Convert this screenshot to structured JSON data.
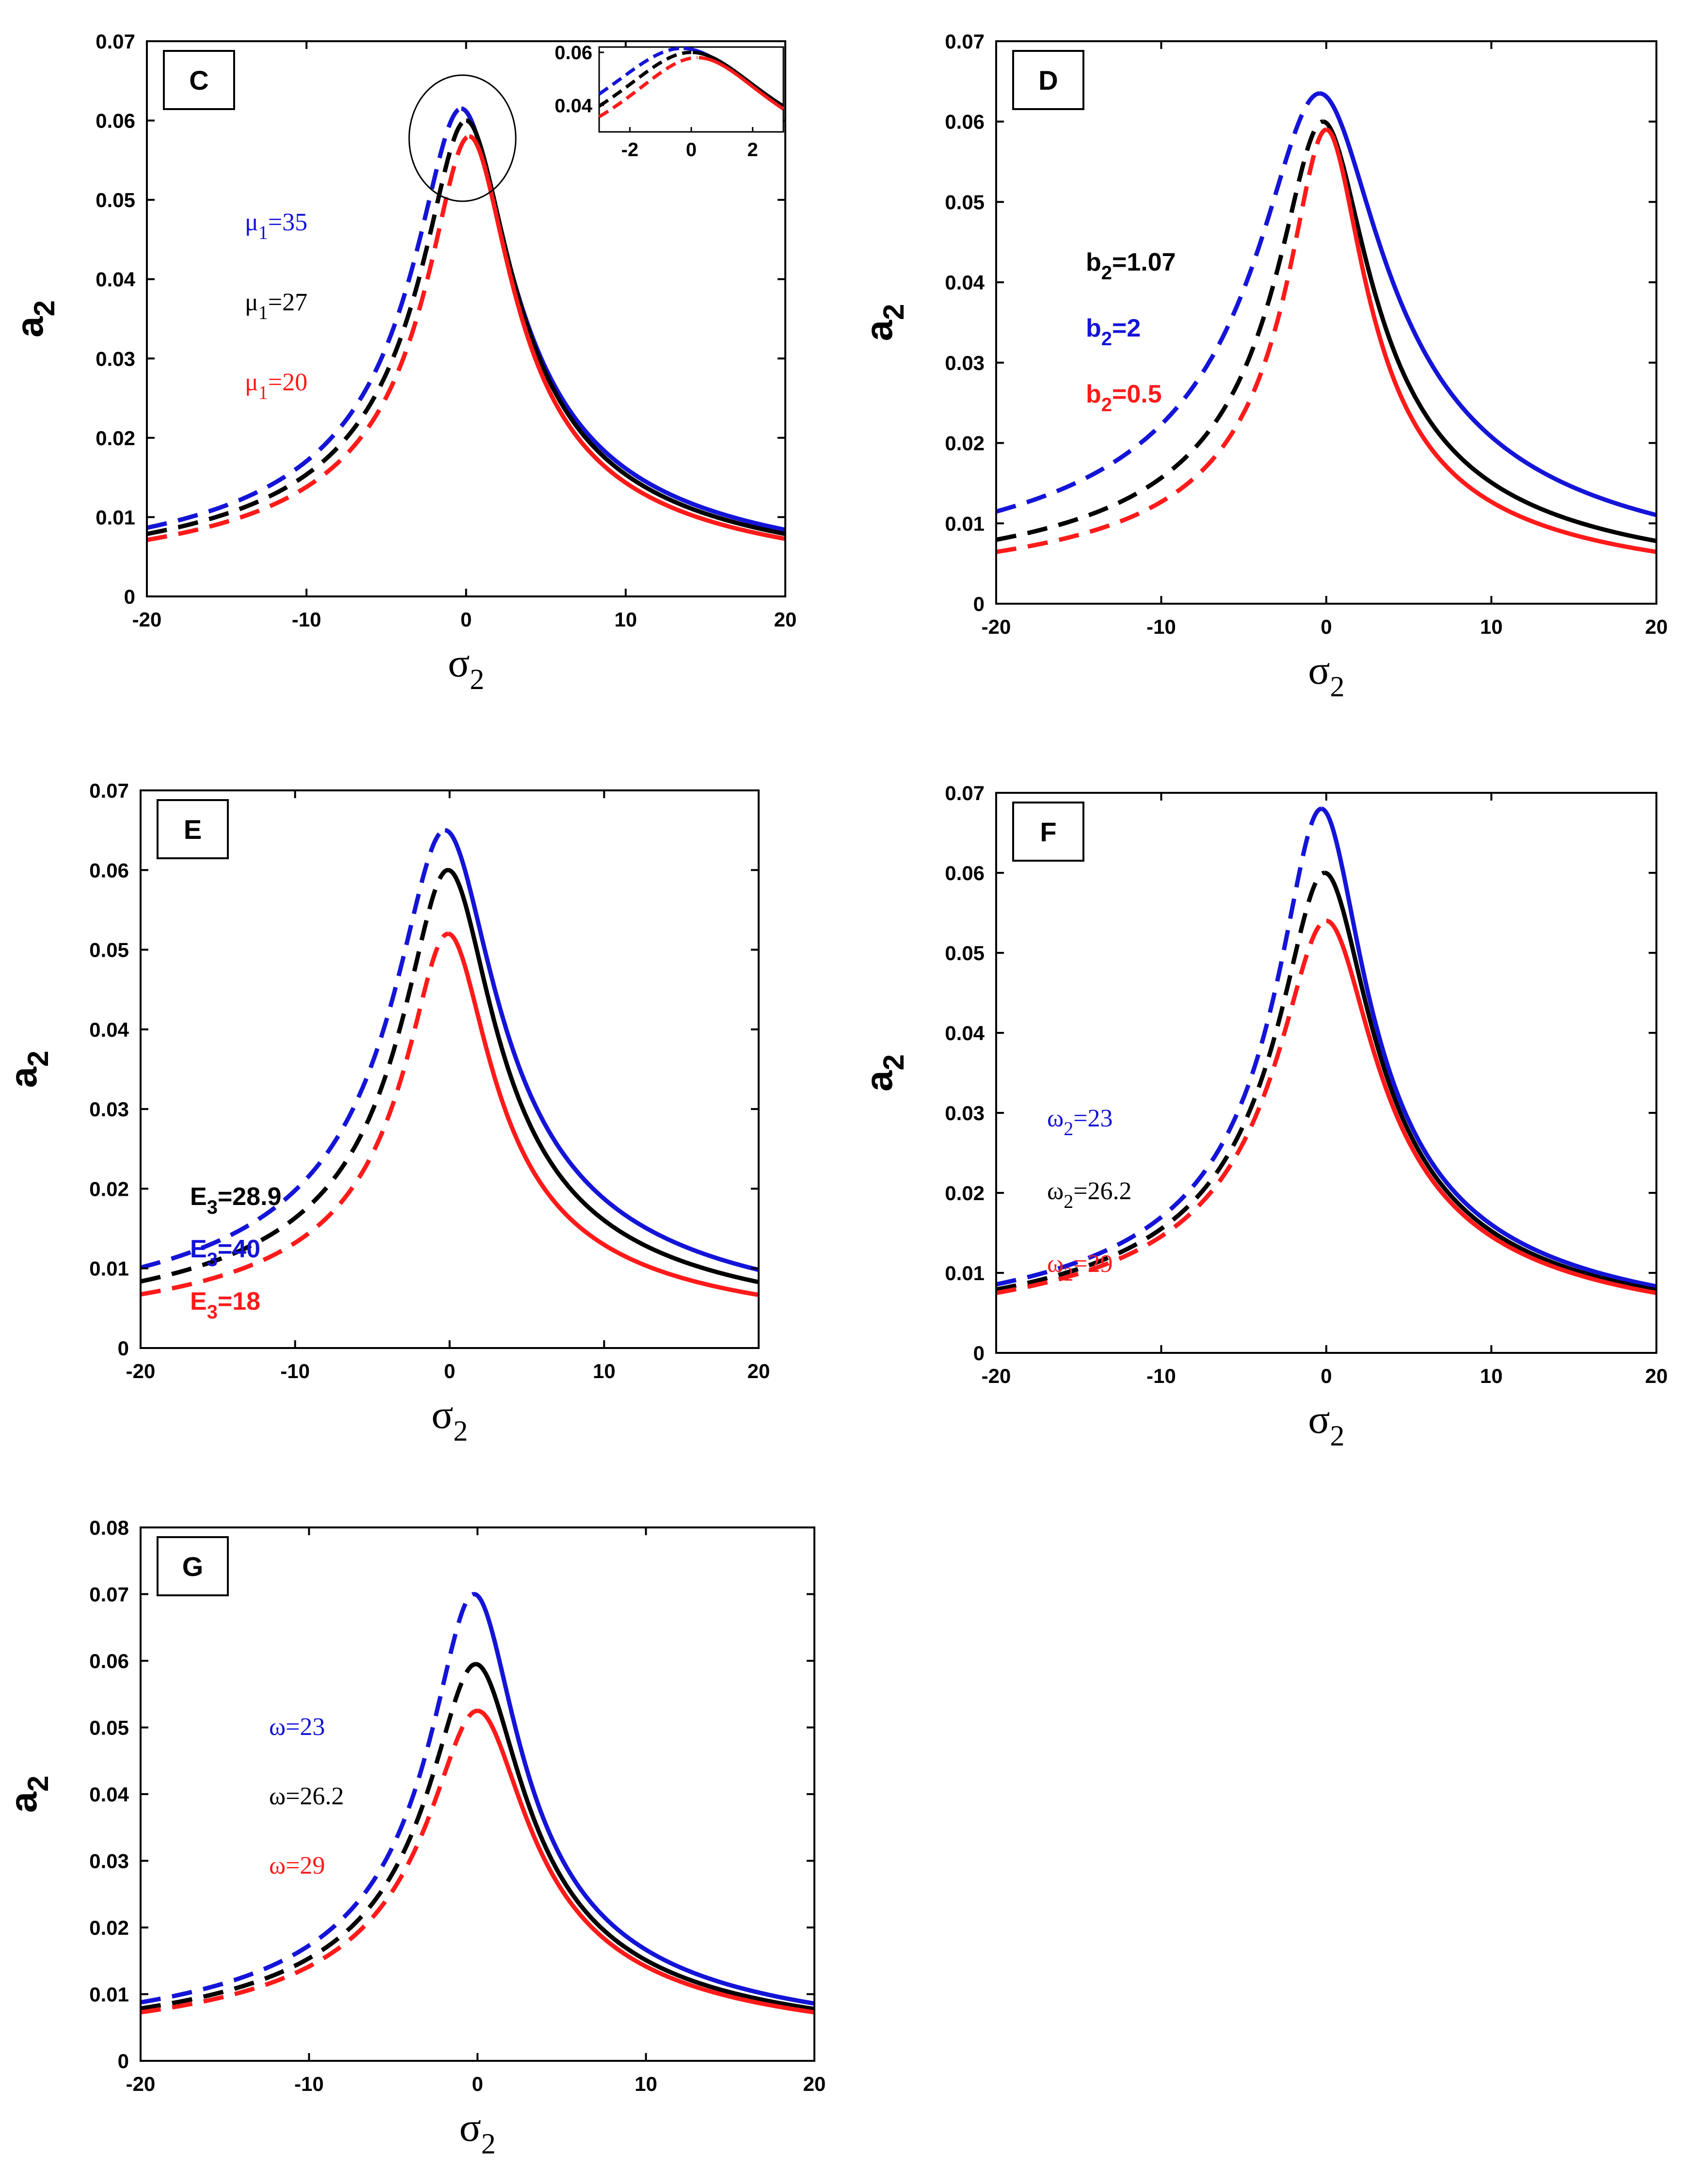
{
  "figure": {
    "colors": {
      "blue": "#1414d8",
      "black": "#000000",
      "red": "#ff1a1a"
    },
    "x_axis": {
      "symbol": "σ",
      "subscript": "2",
      "range": [
        -20,
        20
      ],
      "ticks": [
        "-20",
        "-10",
        "0",
        "10",
        "20"
      ]
    },
    "y_axis": {
      "symbol": "a",
      "subscript": "2"
    }
  },
  "chart_data": [
    {
      "type": "line",
      "panel": "C",
      "xlabel": "σ2",
      "ylabel": "a2",
      "xlim": [
        -20,
        20
      ],
      "ylim": [
        0,
        0.07
      ],
      "yticks": [
        "0",
        "0.01",
        "0.02",
        "0.03",
        "0.04",
        "0.05",
        "0.06",
        "0.07"
      ],
      "legend_style": "serif",
      "legend": [
        {
          "sym": "μ",
          "sub": "1",
          "rest": "=35",
          "color": "blue"
        },
        {
          "sym": "μ",
          "sub": "1",
          "rest": "=27",
          "color": "black"
        },
        {
          "sym": "μ",
          "sub": "1",
          "rest": "=20",
          "color": "red"
        }
      ],
      "series": [
        {
          "name": "μ1=35",
          "color": "blue",
          "peak": 0.0615,
          "peak_x": -0.3,
          "width": 2.8,
          "line": "dashed left of peak, solid right"
        },
        {
          "name": "μ1=27",
          "color": "black",
          "peak": 0.06,
          "peak_x": 0.0,
          "width": 2.65,
          "line": "dashed left of peak, solid right"
        },
        {
          "name": "μ1=20",
          "color": "red",
          "peak": 0.058,
          "peak_x": 0.2,
          "width": 2.5,
          "line": "dashed left of peak, solid right"
        }
      ],
      "inset": {
        "xlim": [
          -3,
          3
        ],
        "ylim": [
          0.03,
          0.062
        ],
        "xticks": [
          "-2",
          "0",
          "2"
        ],
        "yticks": [
          "0.04",
          "0.06"
        ]
      }
    },
    {
      "type": "line",
      "panel": "D",
      "xlabel": "σ2",
      "ylabel": "a2",
      "xlim": [
        -20,
        20
      ],
      "ylim": [
        0,
        0.07
      ],
      "yticks": [
        "0",
        "0.01",
        "0.02",
        "0.03",
        "0.04",
        "0.05",
        "0.06",
        "0.07"
      ],
      "legend_style": "sans",
      "legend": [
        {
          "sym": "b",
          "sub": "2",
          "rest": "=1.07",
          "color": "black"
        },
        {
          "sym": "b",
          "sub": "2",
          "rest": "=2",
          "color": "blue"
        },
        {
          "sym": "b",
          "sub": "2",
          "rest": "=0.5",
          "color": "red"
        }
      ],
      "series": [
        {
          "name": "b2=2",
          "color": "blue",
          "peak": 0.0635,
          "peak_x": -0.4,
          "width": 3.6,
          "line": "dashed left of peak, solid right"
        },
        {
          "name": "b2=1.07",
          "color": "black",
          "peak": 0.06,
          "peak_x": -0.2,
          "width": 2.65,
          "line": "dashed left of peak, solid right"
        },
        {
          "name": "b2=0.5",
          "color": "red",
          "peak": 0.059,
          "peak_x": 0.0,
          "width": 2.2,
          "line": "dashed left of peak, solid right"
        }
      ]
    },
    {
      "type": "line",
      "panel": "E",
      "xlabel": "σ2",
      "ylabel": "a2",
      "xlim": [
        -20,
        20
      ],
      "ylim": [
        0,
        0.07
      ],
      "yticks": [
        "0",
        "0.01",
        "0.02",
        "0.03",
        "0.04",
        "0.05",
        "0.06",
        "0.07"
      ],
      "legend_style": "sans",
      "legend": [
        {
          "sym": "E",
          "sub": "3",
          "rest": "=28.9",
          "color": "black"
        },
        {
          "sym": "E",
          "sub": "3",
          "rest": "=40",
          "color": "blue"
        },
        {
          "sym": "E",
          "sub": "3",
          "rest": "=18",
          "color": "red"
        }
      ],
      "series": [
        {
          "name": "E3=40",
          "color": "blue",
          "peak": 0.065,
          "peak_x": -0.3,
          "width": 3.1,
          "line": "dashed left of peak, solid right"
        },
        {
          "name": "E3=28.9",
          "color": "black",
          "peak": 0.06,
          "peak_x": -0.1,
          "width": 2.8,
          "line": "dashed left of peak, solid right"
        },
        {
          "name": "E3=18",
          "color": "red",
          "peak": 0.052,
          "peak_x": -0.1,
          "width": 2.6,
          "line": "dashed left of peak, solid right"
        }
      ]
    },
    {
      "type": "line",
      "panel": "F",
      "xlabel": "σ2",
      "ylabel": "a2",
      "xlim": [
        -20,
        20
      ],
      "ylim": [
        0,
        0.07
      ],
      "yticks": [
        "0",
        "0.01",
        "0.02",
        "0.03",
        "0.04",
        "0.05",
        "0.06",
        "0.07"
      ],
      "legend_style": "serif",
      "legend": [
        {
          "sym": "ω",
          "sub": "2",
          "rest": "=23",
          "color": "blue"
        },
        {
          "sym": "ω",
          "sub": "2",
          "rest": "=26.2",
          "color": "black"
        },
        {
          "sym": "ω",
          "sub": "2",
          "rest": "=29",
          "color": "red"
        }
      ],
      "series": [
        {
          "name": "ω2=23",
          "color": "blue",
          "peak": 0.068,
          "peak_x": -0.3,
          "width": 2.5,
          "line": "dashed left of peak, solid right"
        },
        {
          "name": "ω2=26.2",
          "color": "black",
          "peak": 0.06,
          "peak_x": -0.1,
          "width": 2.65,
          "line": "dashed left of peak, solid right"
        },
        {
          "name": "ω2=29",
          "color": "red",
          "peak": 0.054,
          "peak_x": 0.0,
          "width": 2.8,
          "line": "dashed left of peak, solid right"
        }
      ]
    },
    {
      "type": "line",
      "panel": "G",
      "xlabel": "σ2",
      "ylabel": "a2",
      "xlim": [
        -20,
        20
      ],
      "ylim": [
        0,
        0.08
      ],
      "yticks": [
        "0",
        "0.01",
        "0.02",
        "0.03",
        "0.04",
        "0.05",
        "0.06",
        "0.07",
        "0.08"
      ],
      "legend_style": "serif",
      "legend": [
        {
          "sym": "ω",
          "sub": "",
          "rest": "=23",
          "color": "blue"
        },
        {
          "sym": "ω",
          "sub": "",
          "rest": "=26.2",
          "color": "black"
        },
        {
          "sym": "ω",
          "sub": "",
          "rest": "=29",
          "color": "red"
        }
      ],
      "series": [
        {
          "name": "ω=23",
          "color": "blue",
          "peak": 0.07,
          "peak_x": -0.2,
          "width": 2.5,
          "line": "dashed left of peak, solid right"
        },
        {
          "name": "ω=26.2",
          "color": "black",
          "peak": 0.0595,
          "peak_x": -0.1,
          "width": 2.65,
          "line": "dashed left of peak, solid right"
        },
        {
          "name": "ω=29",
          "color": "red",
          "peak": 0.0525,
          "peak_x": 0.0,
          "width": 2.8,
          "line": "dashed left of peak, solid right"
        }
      ]
    }
  ]
}
